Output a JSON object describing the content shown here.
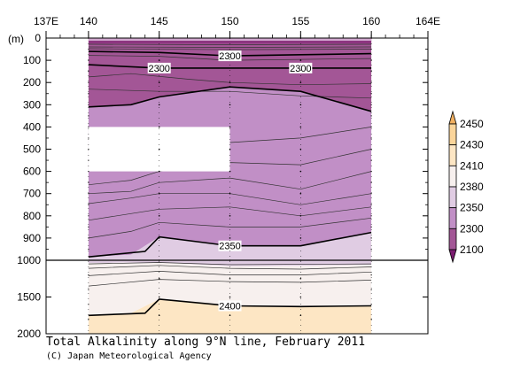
{
  "chart_data": {
    "type": "heatmap",
    "title": "Total Alkalinity along 9°N line, February 2011",
    "credit": "(C) Japan Meteorological Agency",
    "x_ticks": [
      "137E",
      "140",
      "145",
      "150",
      "155",
      "160",
      "164E"
    ],
    "x_tick_values": [
      137,
      140,
      145,
      150,
      155,
      160,
      164
    ],
    "xlim": [
      137,
      164
    ],
    "ylabel": "(m)",
    "y_ticks_upper": [
      "0",
      "100",
      "200",
      "300",
      "400",
      "500",
      "600",
      "700",
      "800",
      "900",
      "1000"
    ],
    "y_ticks_lower": [
      "1500",
      "2000"
    ],
    "ylim_upper": [
      0,
      1000
    ],
    "ylim_lower": [
      1000,
      2000
    ],
    "data_xlim": [
      140,
      160
    ],
    "missing_region": {
      "lon": [
        140,
        150
      ],
      "depth_m": [
        400,
        600
      ]
    },
    "levels": [
      2100,
      2300,
      2350,
      2380,
      2410,
      2430,
      2450
    ],
    "colorbar_labels": [
      "2450",
      "2430",
      "2410",
      "2380",
      "2350",
      "2300",
      "2100"
    ],
    "colors": {
      "lt2100": "#7b1c70",
      "2100_2300": "#a35696",
      "2300_2350": "#c18fc6",
      "2350_2380": "#e0cce3",
      "2380_2410": "#f7f0ee",
      "2410_2430": "#fde6c4",
      "2430_2450": "#fbd59a",
      "gt2450": "#f2b060"
    },
    "contours": [
      {
        "label": "2300",
        "points": [
          [
            140,
            60
          ],
          [
            145,
            65
          ],
          [
            150,
            80
          ],
          [
            155,
            75
          ],
          [
            160,
            70
          ]
        ]
      },
      {
        "label": "2300",
        "points": [
          [
            140,
            120
          ],
          [
            145,
            135
          ],
          [
            150,
            135
          ],
          [
            155,
            135
          ],
          [
            160,
            135
          ]
        ]
      },
      {
        "label": "2300",
        "points": [
          [
            140,
            310
          ],
          [
            143,
            300
          ],
          [
            145,
            265
          ],
          [
            150,
            220
          ],
          [
            155,
            240
          ],
          [
            160,
            330
          ]
        ]
      },
      {
        "label": "2350",
        "points": [
          [
            140,
            985
          ],
          [
            144,
            960
          ],
          [
            145,
            895
          ],
          [
            150,
            935
          ],
          [
            155,
            935
          ],
          [
            160,
            875
          ]
        ]
      },
      {
        "label": "2400",
        "points": [
          [
            140,
            1750
          ],
          [
            144,
            1720
          ],
          [
            145,
            1530
          ],
          [
            150,
            1620
          ],
          [
            155,
            1630
          ],
          [
            160,
            1620
          ]
        ]
      }
    ],
    "contour_labels": [
      {
        "text": "2300",
        "lon": 150,
        "depth": 80
      },
      {
        "text": "2300",
        "lon": 145,
        "depth": 135
      },
      {
        "text": "2300",
        "lon": 155,
        "depth": 135
      },
      {
        "text": "2350",
        "lon": 150,
        "depth": 935
      },
      {
        "text": "2400",
        "lon": 150,
        "depth": 1620
      }
    ]
  }
}
